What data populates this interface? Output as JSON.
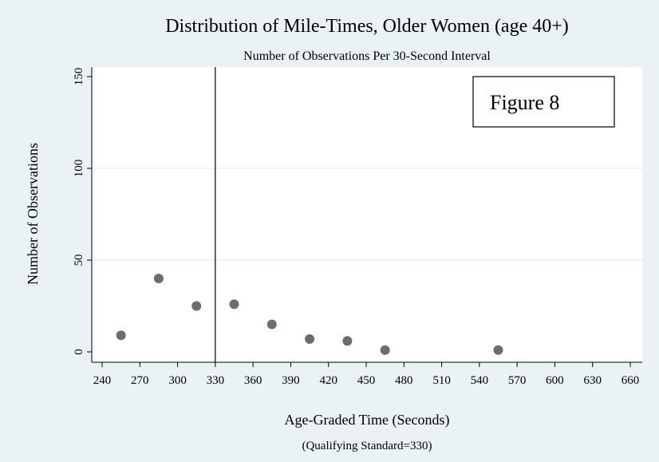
{
  "chart_data": {
    "type": "scatter",
    "title": "Distribution of Mile-Times, Older Women (age 40+)",
    "subtitle": "Number of Observations Per 30-Second Interval",
    "xlabel": "Age-Graded Time (Seconds)",
    "xnote": "(Qualifying Standard=330)",
    "ylabel": "Number of Observations",
    "annotation": "Figure 8",
    "reference_line_x": 330,
    "xlim": [
      240,
      660
    ],
    "ylim": [
      0,
      150
    ],
    "xticks": [
      240,
      270,
      300,
      330,
      360,
      390,
      420,
      450,
      480,
      510,
      540,
      570,
      600,
      630,
      660
    ],
    "yticks": [
      0,
      50,
      100,
      150
    ],
    "grid": "horizontal",
    "marker_color": "#6d6d6d",
    "plot_background": "#ffffff",
    "page_background": "#eaf2f3",
    "points": [
      {
        "x": 255,
        "y": 9
      },
      {
        "x": 285,
        "y": 40
      },
      {
        "x": 315,
        "y": 25
      },
      {
        "x": 345,
        "y": 26
      },
      {
        "x": 375,
        "y": 15
      },
      {
        "x": 405,
        "y": 7
      },
      {
        "x": 435,
        "y": 6
      },
      {
        "x": 465,
        "y": 1
      },
      {
        "x": 555,
        "y": 1
      }
    ]
  }
}
